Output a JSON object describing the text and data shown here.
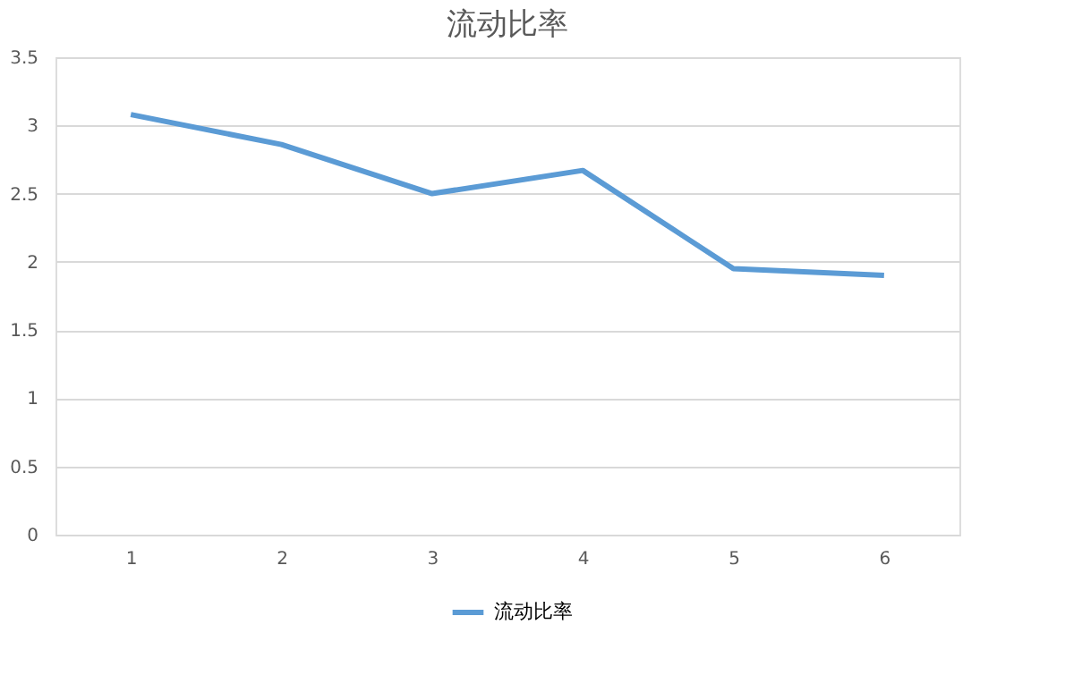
{
  "chart_data": {
    "type": "line",
    "title": "流动比率",
    "categories": [
      "1",
      "2",
      "3",
      "4",
      "5",
      "6"
    ],
    "series": [
      {
        "name": "流动比率",
        "color": "#5b9bd5",
        "values": [
          3.08,
          2.86,
          2.5,
          2.67,
          1.95,
          1.9
        ]
      }
    ],
    "ylim": [
      0,
      3.5
    ],
    "yticks": [
      0,
      0.5,
      1,
      1.5,
      2,
      2.5,
      3,
      3.5
    ],
    "grid": "y",
    "legend": "bottom",
    "marker": "none",
    "line_style": "solid"
  }
}
